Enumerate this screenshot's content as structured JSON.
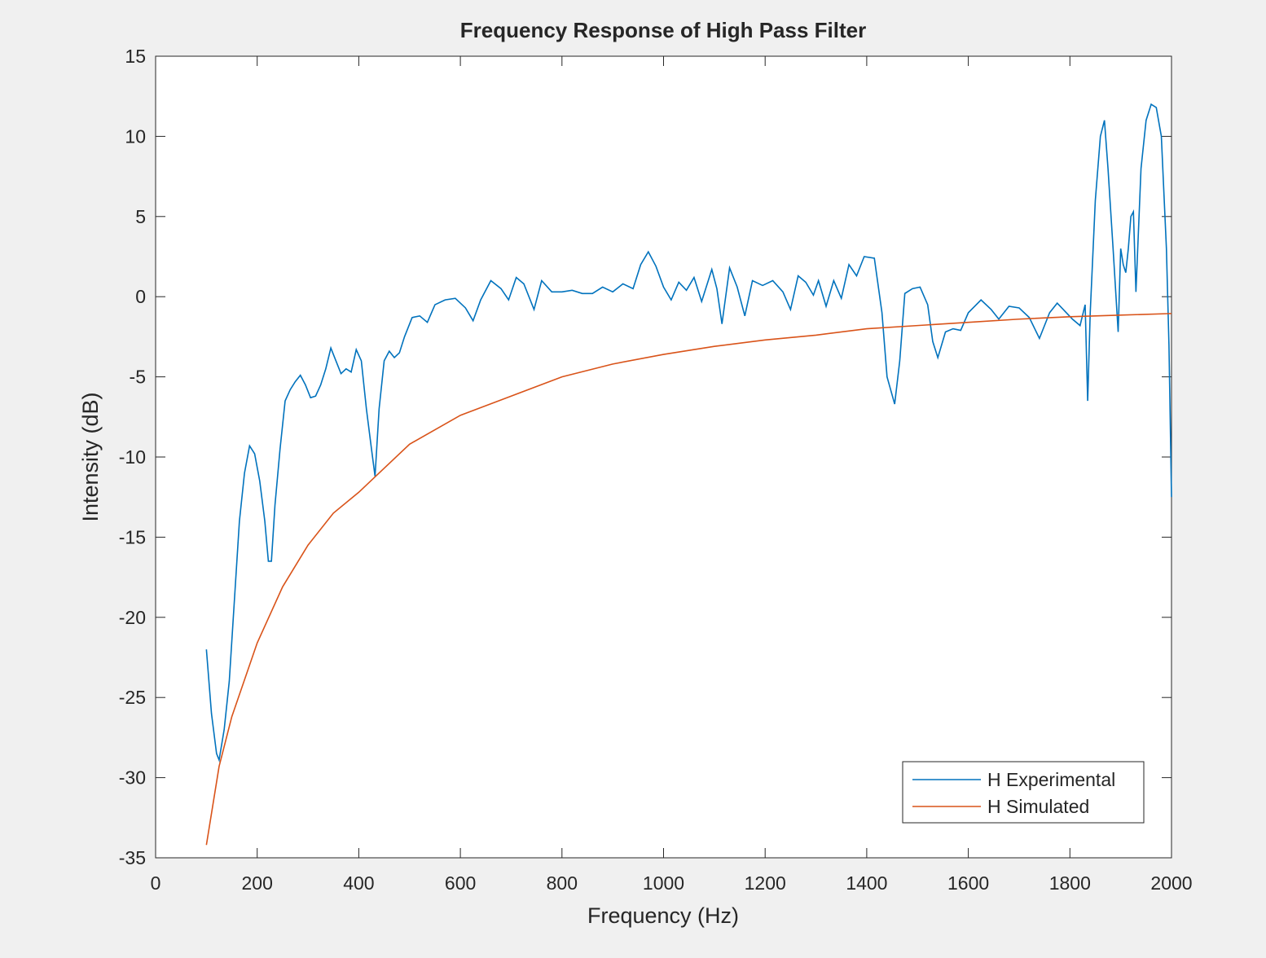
{
  "chart_data": {
    "type": "line",
    "title": "Frequency Response of High Pass Filter",
    "x_label": "Frequency (Hz)",
    "y_label": "Intensity (dB)",
    "xlim": [
      0,
      2000
    ],
    "ylim": [
      -35,
      15
    ],
    "xticks": [
      0,
      200,
      400,
      600,
      800,
      1000,
      1200,
      1400,
      1600,
      1800,
      2000
    ],
    "yticks": [
      -35,
      -30,
      -25,
      -20,
      -15,
      -10,
      -5,
      0,
      5,
      10,
      15
    ],
    "grid": false,
    "legend": "southeast",
    "series": [
      {
        "name": "H Experimental",
        "color": "#0072bd",
        "x": [
          100,
          110,
          120,
          125,
          135,
          145,
          155,
          165,
          175,
          185,
          195,
          205,
          215,
          222,
          228,
          235,
          245,
          255,
          265,
          275,
          285,
          295,
          305,
          315,
          325,
          335,
          345,
          355,
          365,
          375,
          385,
          395,
          405,
          415,
          425,
          432,
          440,
          450,
          460,
          470,
          480,
          490,
          505,
          520,
          535,
          550,
          570,
          590,
          610,
          625,
          640,
          660,
          680,
          695,
          710,
          725,
          745,
          760,
          780,
          800,
          820,
          840,
          860,
          880,
          900,
          920,
          940,
          955,
          970,
          985,
          1000,
          1015,
          1030,
          1045,
          1060,
          1075,
          1095,
          1105,
          1115,
          1130,
          1145,
          1160,
          1175,
          1195,
          1215,
          1235,
          1250,
          1265,
          1280,
          1295,
          1305,
          1320,
          1335,
          1350,
          1365,
          1380,
          1395,
          1415,
          1430,
          1440,
          1455,
          1465,
          1475,
          1490,
          1505,
          1520,
          1530,
          1540,
          1555,
          1570,
          1585,
          1600,
          1625,
          1645,
          1660,
          1680,
          1700,
          1720,
          1740,
          1760,
          1775,
          1790,
          1805,
          1820,
          1830,
          1835,
          1840,
          1850,
          1860,
          1868,
          1875,
          1885,
          1895,
          1900,
          1905,
          1910,
          1915,
          1920,
          1925,
          1930,
          1940,
          1950,
          1960,
          1970,
          1980,
          1990,
          1995,
          2000
        ],
        "values": [
          -22,
          -26,
          -28.5,
          -28.9,
          -27,
          -24,
          -19,
          -14,
          -11,
          -9.3,
          -9.8,
          -11.5,
          -14,
          -16.5,
          -16.5,
          -13,
          -9.5,
          -6.5,
          -5.8,
          -5.3,
          -4.9,
          -5.5,
          -6.3,
          -6.2,
          -5.5,
          -4.5,
          -3.2,
          -4,
          -4.8,
          -4.5,
          -4.7,
          -3.3,
          -4,
          -7,
          -9.5,
          -11.2,
          -7,
          -4,
          -3.4,
          -3.8,
          -3.5,
          -2.5,
          -1.3,
          -1.2,
          -1.6,
          -0.5,
          -0.2,
          -0.1,
          -0.7,
          -1.5,
          -0.2,
          1,
          0.5,
          -0.2,
          1.2,
          0.8,
          -0.8,
          1,
          0.3,
          0.3,
          0.4,
          0.2,
          0.2,
          0.6,
          0.3,
          0.8,
          0.5,
          2,
          2.8,
          1.9,
          0.6,
          -0.2,
          0.9,
          0.4,
          1.2,
          -0.3,
          1.7,
          0.5,
          -1.7,
          1.8,
          0.6,
          -1.2,
          1,
          0.7,
          1,
          0.3,
          -0.8,
          1.3,
          0.9,
          0.1,
          1,
          -0.6,
          1,
          -0.1,
          2,
          1.3,
          2.5,
          2.4,
          -1,
          -5,
          -6.7,
          -4,
          0.2,
          0.5,
          0.6,
          -0.5,
          -2.8,
          -3.8,
          -2.2,
          -2,
          -2.1,
          -1,
          -0.2,
          -0.8,
          -1.4,
          -0.6,
          -0.7,
          -1.3,
          -2.6,
          -1,
          -0.4,
          -0.9,
          -1.4,
          -1.8,
          -0.5,
          -6.5,
          -1,
          6,
          10,
          11,
          8,
          3,
          -2.2,
          3,
          2,
          1.5,
          3,
          5,
          5.3,
          0.3,
          8,
          11,
          12,
          11.8,
          10,
          3,
          -3,
          -12.5
        ]
      },
      {
        "name": "H Simulated",
        "color": "#d95319",
        "x": [
          100,
          125,
          150,
          200,
          250,
          300,
          350,
          400,
          430,
          500,
          600,
          700,
          800,
          900,
          1000,
          1100,
          1200,
          1300,
          1400,
          1500,
          1600,
          1700,
          1800,
          1900,
          2000
        ],
        "values": [
          -34.2,
          -29.3,
          -26.2,
          -21.6,
          -18.1,
          -15.5,
          -13.5,
          -12.2,
          -11.3,
          -9.2,
          -7.4,
          -6.2,
          -5,
          -4.2,
          -3.6,
          -3.1,
          -2.7,
          -2.4,
          -2,
          -1.8,
          -1.6,
          -1.4,
          -1.25,
          -1.15,
          -1.05
        ]
      }
    ]
  }
}
